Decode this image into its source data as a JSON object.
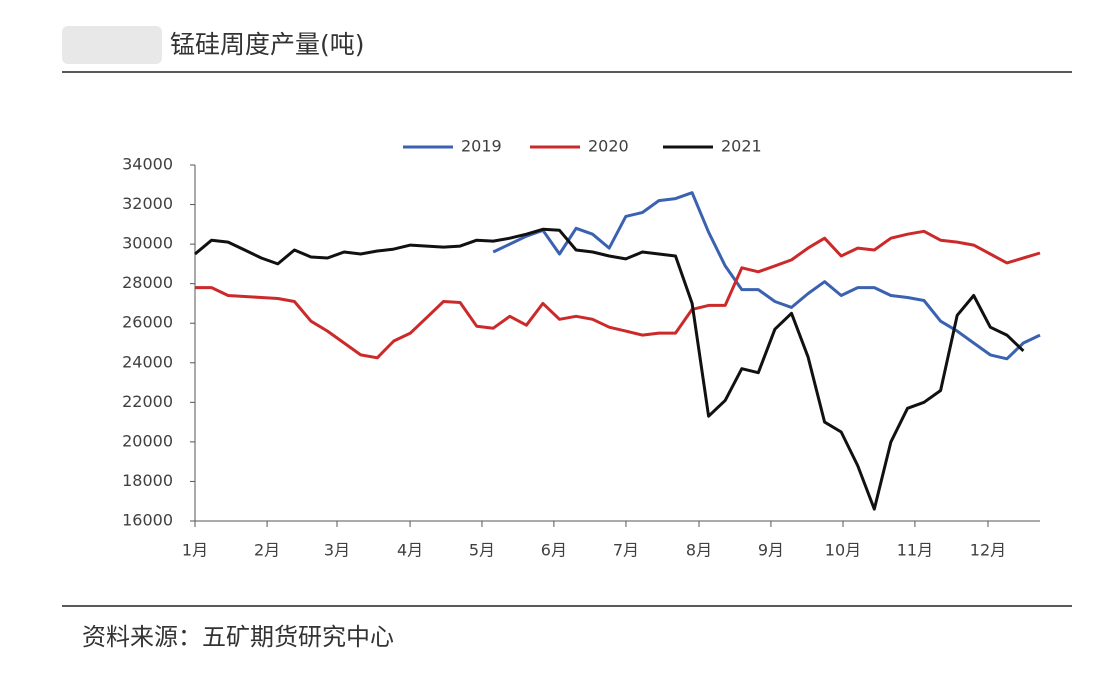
{
  "title": "锰硅周度产量(吨)",
  "source": "资料来源：五矿期货研究中心",
  "chart_data": {
    "type": "line",
    "x": [
      0,
      1,
      2,
      3,
      4,
      5,
      6,
      7,
      8,
      9,
      10,
      11,
      12,
      13,
      14,
      15,
      16,
      17,
      18,
      19,
      20,
      21,
      22,
      23,
      24,
      25,
      26,
      27,
      28,
      29,
      30,
      31,
      32,
      33,
      34,
      35,
      36,
      37,
      38,
      39,
      40,
      41,
      42,
      43,
      44,
      45,
      46,
      47,
      48,
      49,
      50,
      51
    ],
    "xlim": [
      0,
      51
    ],
    "xticks": [
      {
        "value": 0,
        "label": "1月"
      },
      {
        "value": 4.35,
        "label": "2月"
      },
      {
        "value": 8.57,
        "label": "3月"
      },
      {
        "value": 12.98,
        "label": "4月"
      },
      {
        "value": 17.32,
        "label": "5月"
      },
      {
        "value": 21.66,
        "label": "6月"
      },
      {
        "value": 26.01,
        "label": "7月"
      },
      {
        "value": 30.42,
        "label": "8月"
      },
      {
        "value": 34.76,
        "label": "9月"
      },
      {
        "value": 39.11,
        "label": "10月"
      },
      {
        "value": 43.45,
        "label": "11月"
      },
      {
        "value": 47.86,
        "label": "12月"
      }
    ],
    "ylim": [
      16000,
      34000
    ],
    "yticks": [
      16000,
      18000,
      20000,
      22000,
      24000,
      26000,
      28000,
      30000,
      32000,
      34000
    ],
    "grid": false,
    "series": [
      {
        "name": "2019",
        "color": "#3a62b0",
        "values": [
          null,
          null,
          null,
          null,
          null,
          null,
          null,
          null,
          null,
          null,
          null,
          null,
          null,
          null,
          null,
          null,
          null,
          null,
          29600,
          30000,
          30400,
          30700,
          29500,
          30800,
          30500,
          29800,
          31400,
          31600,
          32200,
          32300,
          32600,
          30600,
          28900,
          27700,
          27700,
          27100,
          26800,
          27500,
          28100,
          27400,
          27800,
          27800,
          27400,
          27300,
          27150,
          26100,
          25600,
          25000,
          24400,
          24200,
          25000,
          25400
        ]
      },
      {
        "name": "2020",
        "color": "#cc2a2a",
        "values": [
          27800,
          27800,
          27400,
          27350,
          27300,
          27250,
          27100,
          26100,
          25600,
          25000,
          24400,
          24250,
          25100,
          25500,
          26300,
          27100,
          27050,
          25850,
          25750,
          26350,
          25900,
          27000,
          26200,
          26350,
          26200,
          25800,
          25600,
          25400,
          25500,
          25500,
          26700,
          26900,
          26900,
          28800,
          28600,
          28900,
          29200,
          29800,
          30300,
          29400,
          29800,
          29700,
          30300,
          30500,
          30650,
          30200,
          30100,
          29950,
          29500,
          29050,
          29300,
          29550
        ]
      },
      {
        "name": "2021",
        "color": "#111111",
        "values": [
          29500,
          30200,
          30100,
          29700,
          29300,
          29000,
          29700,
          29350,
          29300,
          29600,
          29500,
          29650,
          29750,
          29950,
          29900,
          29850,
          29900,
          30200,
          30150,
          30300,
          30500,
          30750,
          30700,
          29700,
          29600,
          29400,
          29250,
          29600,
          29500,
          29400,
          27000,
          21300,
          22100,
          23700,
          23500,
          25700,
          26500,
          24300,
          21000,
          20500,
          18800,
          16600,
          20000,
          21700,
          22000,
          22600,
          26400,
          27400,
          25800,
          25400,
          24600,
          null
        ]
      }
    ]
  }
}
